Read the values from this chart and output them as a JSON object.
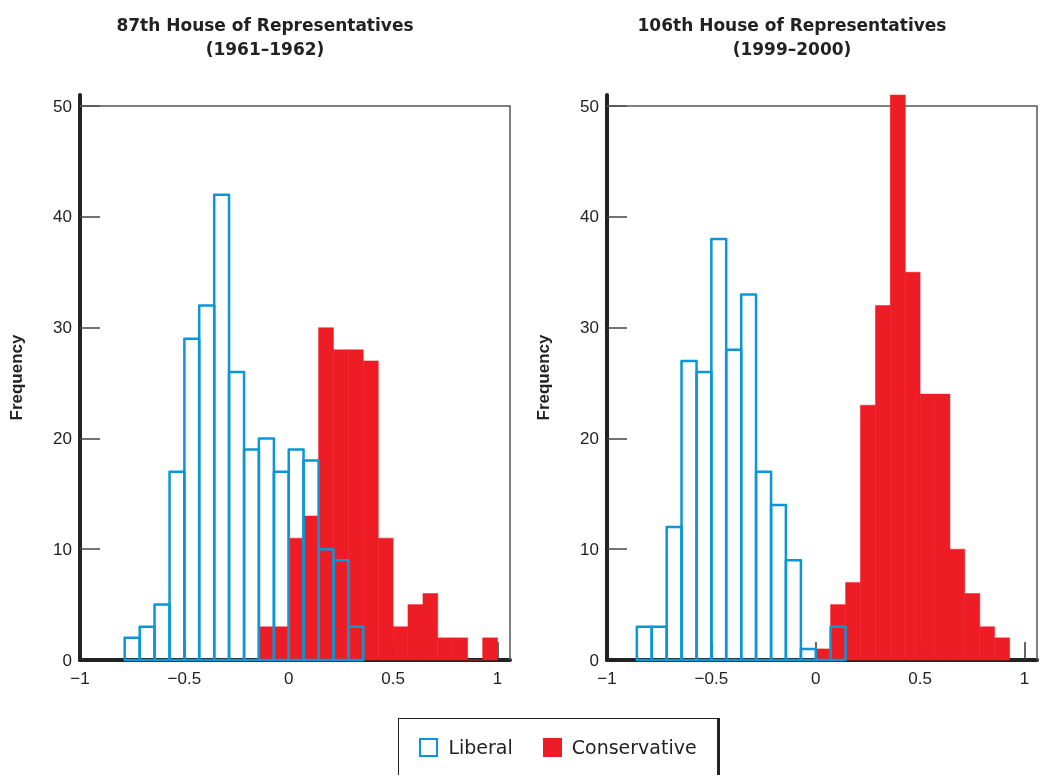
{
  "chart_data": [
    {
      "type": "histogram",
      "title": "87th House of Representatives\n(1961–1962)",
      "ylabel": "Frequency",
      "xlim": [
        -1,
        1.06
      ],
      "xticks": [
        -1,
        -0.5,
        0,
        0.5,
        1
      ],
      "ylim": [
        0,
        51
      ],
      "yticks": [
        0,
        10,
        20,
        30,
        40,
        50
      ],
      "grid": false,
      "legend": "bottom",
      "bins": [
        -0.786,
        -0.714,
        -0.643,
        -0.571,
        -0.5,
        -0.429,
        -0.357,
        -0.286,
        -0.214,
        -0.143,
        -0.071,
        0,
        0.071,
        0.143,
        0.214,
        0.286,
        0.357,
        0.429,
        0.5,
        0.571,
        0.643,
        0.714,
        0.786,
        0.857,
        0.929,
        1
      ],
      "series": [
        {
          "name": "Liberal",
          "color": "#0a96d8",
          "line_style": "solid",
          "values": [
            2,
            3,
            5,
            17,
            29,
            32,
            42,
            26,
            19,
            20,
            17,
            19,
            18,
            10,
            9,
            3,
            null,
            null,
            null,
            null,
            null,
            null,
            null,
            null,
            null
          ]
        },
        {
          "name": "Conservative",
          "color": "#ee1c25",
          "values": [
            null,
            null,
            null,
            null,
            null,
            null,
            null,
            null,
            null,
            3,
            3,
            11,
            13,
            30,
            28,
            28,
            27,
            11,
            3,
            5,
            6,
            2,
            2,
            0,
            2
          ]
        }
      ]
    },
    {
      "type": "histogram",
      "title": "106th House of Representatives\n(1999–2000)",
      "ylabel": "Frequency",
      "xlim": [
        -1,
        1.06
      ],
      "xticks": [
        -1,
        -0.5,
        0,
        0.5,
        1
      ],
      "ylim": [
        0,
        51
      ],
      "yticks": [
        0,
        10,
        20,
        30,
        40,
        50
      ],
      "grid": false,
      "bins": [
        -0.857,
        -0.786,
        -0.714,
        -0.643,
        -0.571,
        -0.5,
        -0.429,
        -0.357,
        -0.286,
        -0.214,
        -0.143,
        -0.071,
        0,
        0.071,
        0.143,
        0.214,
        0.286,
        0.357,
        0.429,
        0.5,
        0.571,
        0.643,
        0.714,
        0.786,
        0.857,
        0.929
      ],
      "series": [
        {
          "color": "#0a96d8",
          "line_style": "solid",
          "values": [
            3,
            3,
            12,
            27,
            26,
            38,
            28,
            33,
            17,
            14,
            9,
            1,
            0,
            3,
            null,
            null,
            null,
            null,
            null,
            null,
            null,
            null,
            null,
            null,
            null
          ]
        },
        {
          "color": "#ee1c25",
          "values": [
            null,
            null,
            null,
            null,
            null,
            null,
            null,
            null,
            null,
            null,
            null,
            null,
            1,
            5,
            7,
            23,
            32,
            51,
            35,
            24,
            24,
            10,
            6,
            3,
            2
          ]
        }
      ]
    }
  ]
}
